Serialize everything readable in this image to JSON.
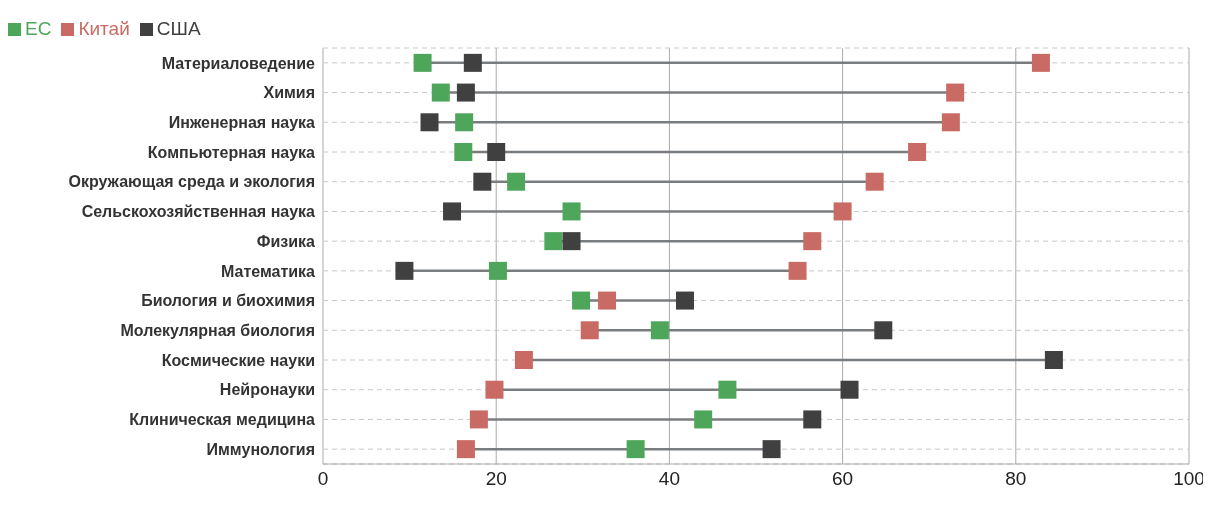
{
  "chart_data": {
    "type": "scatter",
    "orientation": "horizontal",
    "categories": [
      "Материаловедение",
      "Химия",
      "Инженерная наука",
      "Компьютерная наука",
      "Окружающая среда и экология",
      "Сельскохозяйственная наука",
      "Физика",
      "Математика",
      "Биология и биохимия",
      "Молекулярная биология",
      "Космические науки",
      "Нейронауки",
      "Клиническая медицина",
      "Иммунология"
    ],
    "series": [
      {
        "name": "ЕС",
        "color": "#4ea65a",
        "values": [
          11.5,
          13.6,
          16.3,
          16.2,
          22.3,
          28.7,
          26.6,
          20.2,
          29.8,
          38.9,
          null,
          46.7,
          43.9,
          36.1
        ]
      },
      {
        "name": "Китай",
        "color": "#c96b64",
        "values": [
          82.9,
          73.0,
          72.5,
          68.6,
          63.7,
          60.0,
          56.5,
          54.8,
          32.8,
          30.8,
          23.2,
          19.8,
          18.0,
          16.5
        ]
      },
      {
        "name": "США",
        "color": "#404040",
        "values": [
          17.3,
          16.5,
          12.3,
          20.0,
          18.4,
          14.9,
          28.7,
          9.4,
          41.8,
          64.7,
          84.4,
          60.8,
          56.5,
          51.8
        ]
      }
    ],
    "xlim": [
      0,
      100
    ],
    "xticks": [
      0,
      20,
      40,
      60,
      80,
      100
    ],
    "grid": true,
    "legend": "top left",
    "marker": "square"
  }
}
